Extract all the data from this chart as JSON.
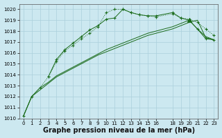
{
  "background_color": "#cce8f0",
  "grid_color": "#aacfdb",
  "line_color": "#1a6b1a",
  "xlabel": "Graphe pression niveau de la mer (hPa)",
  "xlabel_fontsize": 7,
  "ylim": [
    1010,
    1020.5
  ],
  "xlim": [
    -0.5,
    23.5
  ],
  "yticks": [
    1010,
    1011,
    1012,
    1013,
    1014,
    1015,
    1016,
    1017,
    1018,
    1019,
    1020
  ],
  "xticks": [
    0,
    1,
    2,
    3,
    4,
    5,
    6,
    7,
    8,
    9,
    10,
    11,
    12,
    13,
    14,
    15,
    16,
    18,
    19,
    20,
    21,
    22,
    23
  ],
  "series_dotted": {
    "x": [
      0,
      1,
      2,
      3,
      4,
      5,
      6,
      7,
      8,
      9,
      10,
      11,
      12,
      13,
      14,
      15,
      16,
      18,
      19,
      20,
      21,
      22,
      23
    ],
    "y": [
      1010.2,
      1012.0,
      1012.8,
      1013.8,
      1015.2,
      1016.2,
      1016.7,
      1017.3,
      1017.8,
      1018.4,
      1019.7,
      1020.0,
      1020.0,
      1019.7,
      1019.5,
      1019.4,
      1019.3,
      1019.6,
      1019.2,
      1019.1,
      1018.8,
      1018.2,
      1017.6
    ]
  },
  "series_solid_markers": {
    "x": [
      3,
      4,
      5,
      6,
      7,
      8,
      9,
      10,
      11,
      12,
      13,
      14,
      15,
      16,
      18,
      19,
      20,
      21,
      22,
      23
    ],
    "y": [
      1013.8,
      1015.4,
      1016.3,
      1016.9,
      1017.5,
      1018.1,
      1018.5,
      1019.1,
      1019.2,
      1020.0,
      1019.7,
      1019.5,
      1019.4,
      1019.4,
      1019.7,
      1019.2,
      1019.0,
      1018.2,
      1017.3,
      1017.2
    ]
  },
  "series_slow1": {
    "x": [
      0,
      1,
      2,
      3,
      4,
      5,
      6,
      7,
      8,
      9,
      10,
      11,
      12,
      13,
      14,
      15,
      16,
      18,
      19,
      20,
      21,
      22,
      23
    ],
    "y": [
      1010.2,
      1012.0,
      1012.6,
      1013.2,
      1013.8,
      1014.2,
      1014.6,
      1015.0,
      1015.4,
      1015.8,
      1016.1,
      1016.4,
      1016.7,
      1017.0,
      1017.3,
      1017.6,
      1017.8,
      1018.2,
      1018.5,
      1018.8,
      1019.0,
      1017.4,
      1017.2
    ]
  },
  "series_slow2": {
    "x": [
      0,
      1,
      2,
      3,
      4,
      5,
      6,
      7,
      8,
      9,
      10,
      11,
      12,
      13,
      14,
      15,
      16,
      18,
      19,
      20,
      21,
      22,
      23
    ],
    "y": [
      1010.2,
      1012.0,
      1012.8,
      1013.3,
      1013.9,
      1014.3,
      1014.7,
      1015.1,
      1015.5,
      1015.9,
      1016.3,
      1016.6,
      1016.9,
      1017.2,
      1017.5,
      1017.8,
      1018.0,
      1018.4,
      1018.7,
      1019.0,
      1018.2,
      1017.5,
      1017.2
    ]
  }
}
